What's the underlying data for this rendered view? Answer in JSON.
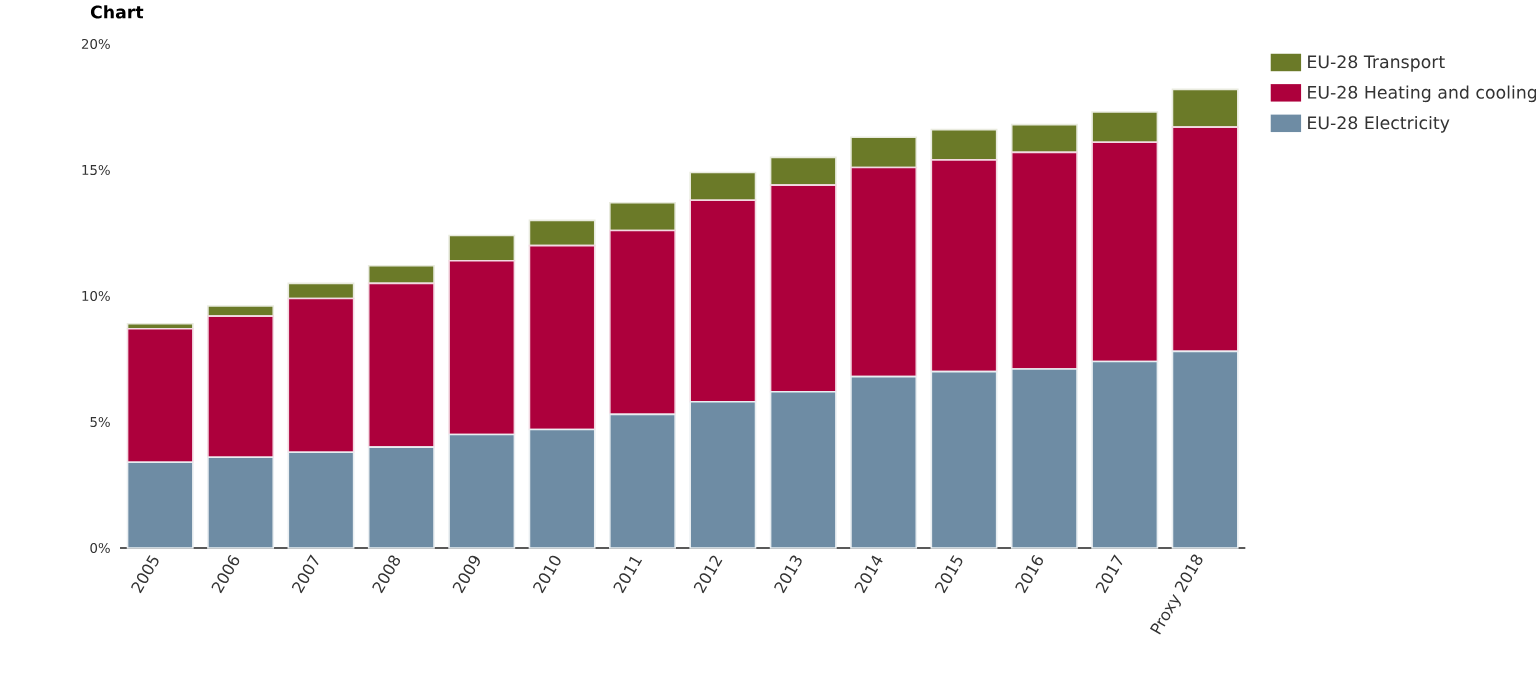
{
  "chart_data": {
    "type": "bar",
    "title": "Chart",
    "stacked": true,
    "categories": [
      "2005",
      "2006",
      "2007",
      "2008",
      "2009",
      "2010",
      "2011",
      "2012",
      "2013",
      "2014",
      "2015",
      "2016",
      "2017",
      "Proxy 2018"
    ],
    "series": [
      {
        "name": "EU-28 Electricity",
        "color": "#6e8ca4",
        "values": [
          3.4,
          3.6,
          3.8,
          4.0,
          4.5,
          4.7,
          5.3,
          5.8,
          6.2,
          6.8,
          7.0,
          7.1,
          7.4,
          7.8
        ]
      },
      {
        "name": "EU-28 Heating and cooling",
        "color": "#ad003c",
        "values": [
          5.3,
          5.6,
          6.1,
          6.5,
          6.9,
          7.3,
          7.3,
          8.0,
          8.2,
          8.3,
          8.4,
          8.6,
          8.7,
          8.9
        ]
      },
      {
        "name": "EU-28 Transport",
        "color": "#6b7a28",
        "values": [
          0.2,
          0.4,
          0.6,
          0.7,
          1.0,
          1.0,
          1.1,
          1.1,
          1.1,
          1.2,
          1.2,
          1.1,
          1.2,
          1.5
        ]
      }
    ],
    "ylim": [
      0,
      20
    ],
    "yticks": [
      {
        "value": 0,
        "label": "0%"
      },
      {
        "value": 5,
        "label": "5%"
      },
      {
        "value": 10,
        "label": "10%"
      },
      {
        "value": 15,
        "label": "15%"
      },
      {
        "value": 20,
        "label": "20%"
      }
    ],
    "legend": "top right"
  }
}
